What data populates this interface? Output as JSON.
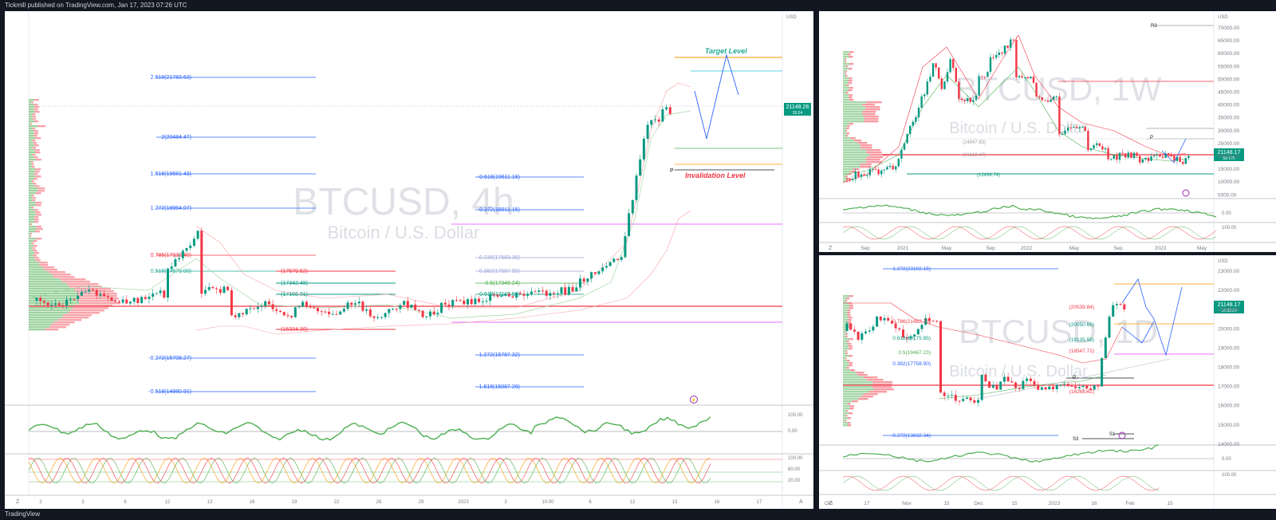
{
  "header": {
    "published": "Tickmill published on TradingView.com, Jan 17, 2023 07:26 UTC"
  },
  "footer": {
    "brand": "TradingView"
  },
  "main": {
    "symbol": "BTCUSD, 4h",
    "description": "Bitcoin / U.S. Dollar",
    "currency": "USD",
    "price": "21148.26",
    "countdown": "33:24",
    "target_label": "Target Level",
    "invalidation_label": "Invalidation Level",
    "pivot": "P",
    "fib_left": [
      {
        "label": "2.618(21783.63)",
        "color": "#2962ff"
      },
      {
        "label": "2(20484.47)",
        "color": "#2962ff"
      },
      {
        "label": "1.618(19681.43)",
        "color": "#2962ff"
      },
      {
        "label": "1.272(18954.07)",
        "color": "#2962ff"
      },
      {
        "label": "0.786(17932.40)",
        "color": "#f23645"
      },
      {
        "label": "0.618(17579.00)",
        "color": "#22ab94"
      },
      {
        "label": "-0.272(15708.27)",
        "color": "#2962ff"
      },
      {
        "label": "-0.618(14980.91)",
        "color": "#2962ff"
      }
    ],
    "fib_mid": [
      {
        "label": "(17579.52)",
        "color": "#f23645"
      },
      {
        "label": "(17342.48)",
        "color": "#089981"
      },
      {
        "label": "(17103.91)",
        "color": "#089981"
      },
      {
        "label": "(16334.30)",
        "color": "#f23645"
      }
    ],
    "fib_right": [
      {
        "label": "-0.618(19611.18)",
        "color": "#2962ff"
      },
      {
        "label": "-0.272(18911.15)",
        "color": "#2962ff"
      },
      {
        "label": "0.236(17583.36)",
        "color": "#9fa8da"
      },
      {
        "label": "0.382(17587.99)",
        "color": "#9fa8da"
      },
      {
        "label": "0.5(17349.24)",
        "color": "#4caf50"
      },
      {
        "label": "0.618(17110.50)",
        "color": "#089981"
      },
      {
        "label": "1.272(15787.32)",
        "color": "#2962ff"
      },
      {
        "label": "1.618(15087.29)",
        "color": "#2962ff"
      }
    ],
    "xaxis": [
      "2",
      "3",
      "6",
      "12",
      "13",
      "16",
      "19",
      "22",
      "26",
      "29",
      "2023",
      "3",
      "10:00",
      "6",
      "12",
      "13",
      "16",
      "17"
    ],
    "rsi_axis": [
      "100.00",
      "0.00"
    ],
    "stoch_axis": [
      "100.00",
      "80.00",
      "20.00"
    ]
  },
  "weekly": {
    "symbol": "BTCUSD, 1W",
    "description": "Bitcoin / U.S. Dollar",
    "currency": "USD",
    "price": "21148.17",
    "countdown": "5d 17h",
    "r3": "R3",
    "pivot": "P",
    "levels": [
      "(24847.83)",
      "(21612.47)",
      "(12436.74)"
    ],
    "yaxis": [
      "70000.00",
      "65000.00",
      "60000.00",
      "55000.00",
      "50000.00",
      "45000.00",
      "40000.00",
      "35000.00",
      "30000.00",
      "25000.00",
      "20000.00",
      "15000.00",
      "10000.00",
      "5000.00"
    ],
    "xaxis": [
      "Sep",
      "2021",
      "May",
      "Sep",
      "2022",
      "May",
      "Sep",
      "2023",
      "May"
    ],
    "rsi_axis": [
      "0.00"
    ],
    "stoch_axis": [
      "100.00"
    ]
  },
  "daily": {
    "symbol": "BTCUSD, 1D",
    "description": "Bitcoin / U.S. Dollar",
    "currency": "USD",
    "price": "21148.17",
    "countdown": "16:33:24",
    "pivot": "P",
    "s1": "S1",
    "s3": "S3",
    "fib": [
      "1.272(23102.15)",
      "0.786(21482.73)",
      "0.618(19175.85)",
      "0.5(19467.23)",
      "0.382(17758.90)",
      "-0.272(13832.34)"
    ],
    "levels": [
      "(20539.84)",
      "(20050.66)",
      "(19135.58)",
      "(18547.72)",
      "(16268.42)"
    ],
    "yaxis": [
      "23000.00",
      "22000.00",
      "21000.00",
      "20000.00",
      "19000.00",
      "18000.00",
      "17000.00",
      "16000.00",
      "15000.00",
      "14000.00"
    ],
    "xaxis": [
      "Oct",
      "17",
      "Nov",
      "15",
      "Dec",
      "15",
      "2023",
      "16",
      "Feb",
      "15"
    ],
    "rsi_axis": [
      "0.00"
    ],
    "stoch_axis": [
      "100.00"
    ]
  }
}
